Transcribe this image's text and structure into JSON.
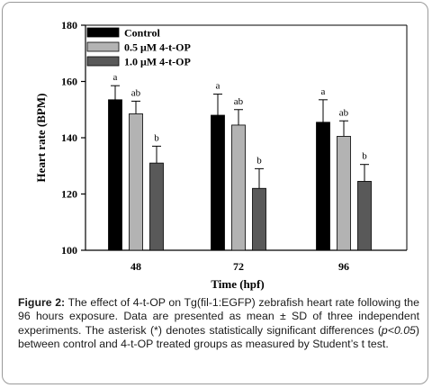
{
  "chart_data": {
    "type": "bar",
    "categories": [
      "48",
      "72",
      "96"
    ],
    "series": [
      {
        "name": "Control",
        "color": "#000000",
        "values": [
          153.5,
          148,
          145.5
        ],
        "errors": [
          5,
          7.5,
          8
        ],
        "labels": [
          "a",
          "a",
          "a"
        ]
      },
      {
        "name": "0.5 μM 4-t-OP",
        "color": "#b3b3b3",
        "values": [
          148.5,
          144.5,
          140.5
        ],
        "errors": [
          4.5,
          5.5,
          5.5
        ],
        "labels": [
          "ab",
          "ab",
          "ab"
        ]
      },
      {
        "name": "1.0 μM 4-t-OP",
        "color": "#595959",
        "values": [
          131,
          122,
          124.5
        ],
        "errors": [
          6,
          7,
          6
        ],
        "labels": [
          "b",
          "b",
          "b"
        ]
      }
    ],
    "xlabel": "Time (hpf)",
    "ylabel": "Heart rate (BPM)",
    "ylim": [
      100,
      180
    ],
    "yticks": [
      "100",
      "120",
      "140",
      "160",
      "180"
    ],
    "legend_position": "top-left",
    "grid": false
  },
  "caption": {
    "label": "Figure 2:",
    "text_1": " The effect of 4-t-OP on Tg(fil-1:EGFP) zebrafish heart rate following the 96 hours exposure. Data are presented as mean ± SD of three independent experiments. The asterisk (*) denotes statistically significant differences (",
    "italic": "p<0.05",
    "text_2": ") between control and 4-t-OP treated groups as measured by Student’s t test."
  }
}
